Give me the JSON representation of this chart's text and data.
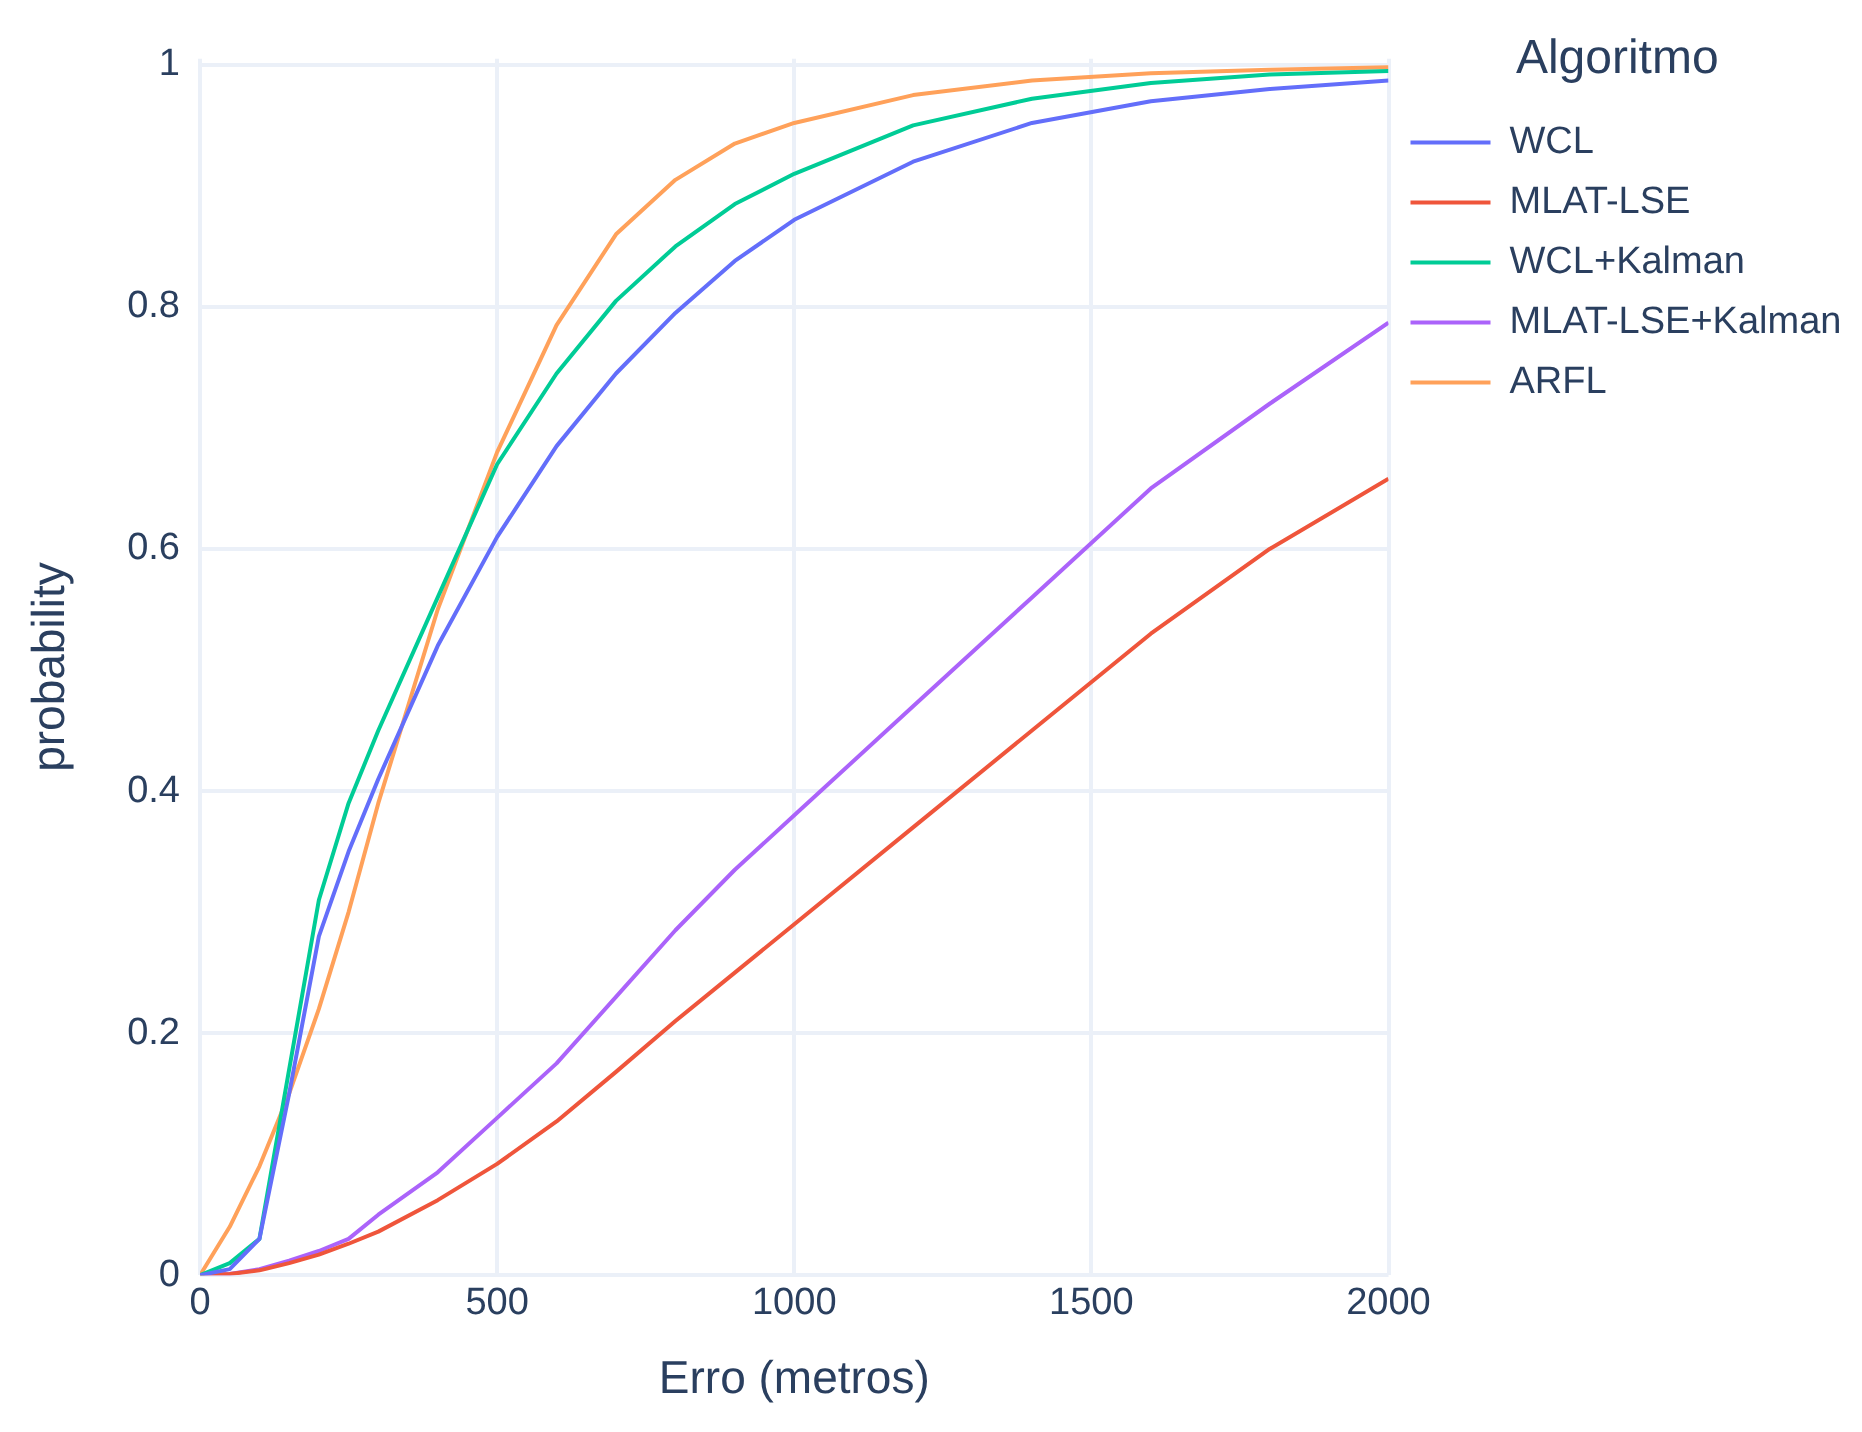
{
  "chart_data": {
    "type": "line",
    "xlabel": "Erro (metros)",
    "ylabel": "probability",
    "legend_title": "Algoritmo",
    "x": [
      0,
      50,
      100,
      150,
      200,
      250,
      300,
      400,
      500,
      600,
      700,
      800,
      900,
      1000,
      1200,
      1400,
      1600,
      1800,
      2000
    ],
    "series": [
      {
        "name": "WCL",
        "color": "#636efa",
        "values": [
          0,
          0.005,
          0.03,
          0.15,
          0.28,
          0.35,
          0.41,
          0.52,
          0.61,
          0.685,
          0.745,
          0.795,
          0.838,
          0.872,
          0.92,
          0.952,
          0.97,
          0.98,
          0.987
        ]
      },
      {
        "name": "MLAT-LSE",
        "color": "#ef553b",
        "values": [
          0,
          0.001,
          0.004,
          0.01,
          0.017,
          0.026,
          0.036,
          0.062,
          0.092,
          0.127,
          0.168,
          0.21,
          0.25,
          0.29,
          0.37,
          0.45,
          0.53,
          0.6,
          0.658
        ]
      },
      {
        "name": "WCL+Kalman",
        "color": "#00cc96",
        "values": [
          0,
          0.01,
          0.03,
          0.17,
          0.31,
          0.39,
          0.45,
          0.56,
          0.67,
          0.745,
          0.805,
          0.85,
          0.885,
          0.91,
          0.95,
          0.972,
          0.985,
          0.992,
          0.995
        ]
      },
      {
        "name": "MLAT-LSE+Kalman",
        "color": "#ab63fa",
        "values": [
          0,
          0.001,
          0.005,
          0.012,
          0.02,
          0.03,
          0.05,
          0.085,
          0.13,
          0.175,
          0.23,
          0.285,
          0.335,
          0.38,
          0.47,
          0.56,
          0.65,
          0.72,
          0.787
        ]
      },
      {
        "name": "ARFL",
        "color": "#ffa15a",
        "values": [
          0,
          0.04,
          0.09,
          0.15,
          0.22,
          0.3,
          0.39,
          0.55,
          0.68,
          0.785,
          0.86,
          0.905,
          0.935,
          0.952,
          0.975,
          0.987,
          0.993,
          0.996,
          0.998
        ]
      }
    ],
    "xlim": [
      0,
      2000
    ],
    "xticks": [
      0,
      500,
      1000,
      1500,
      2000
    ],
    "ylim": [
      0,
      1.005
    ],
    "yticks": [
      0,
      0.2,
      0.4,
      0.6,
      0.8,
      1
    ],
    "grid": true,
    "legend": "top right",
    "marker": "none",
    "line_style": "solid"
  }
}
